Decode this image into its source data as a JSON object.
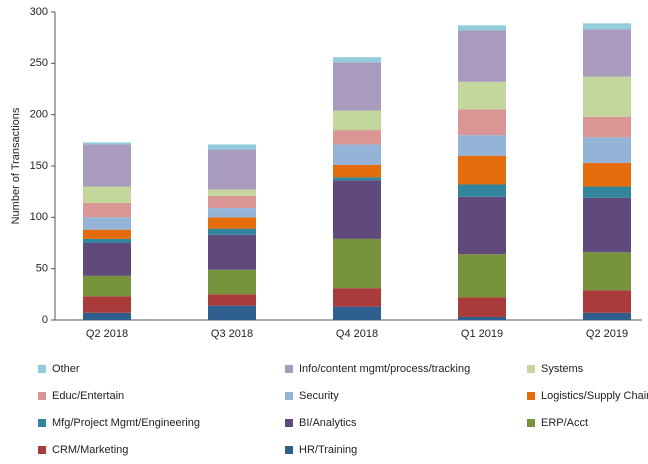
{
  "chart_data": {
    "type": "stacked_bar",
    "y_label": "Number of Transactions",
    "categories": [
      "Q2 2018",
      "Q3 2018",
      "Q4 2018",
      "Q1 2019",
      "Q2 2019"
    ],
    "ylim": [
      0,
      300
    ],
    "yticks": [
      0,
      50,
      100,
      150,
      200,
      250,
      300
    ],
    "series": [
      {
        "name": "Other",
        "color": "#93cddd",
        "values": [
          2,
          5,
          5,
          5,
          6
        ]
      },
      {
        "name": "Info/content mgmt/process/tracking",
        "color": "#a99bbd",
        "values": [
          41,
          39,
          47,
          50,
          46
        ]
      },
      {
        "name": "Systems",
        "color": "#c3d69b",
        "values": [
          16,
          6,
          19,
          27,
          39
        ]
      },
      {
        "name": "Educ/Entertain",
        "color": "#d99694",
        "values": [
          14,
          12,
          14,
          25,
          20
        ]
      },
      {
        "name": "Security",
        "color": "#95b3d7",
        "values": [
          12,
          9,
          20,
          20,
          25
        ]
      },
      {
        "name": "Logistics/Supply Chain",
        "color": "#e46c0a",
        "values": [
          9,
          11,
          12,
          28,
          23
        ]
      },
      {
        "name": "Mfg/Project Mgmt/Engineering",
        "color": "#31859c",
        "values": [
          4,
          6,
          3,
          12,
          11
        ]
      },
      {
        "name": "BI/Analytics",
        "color": "#604a7b",
        "values": [
          32,
          34,
          57,
          56,
          53
        ]
      },
      {
        "name": "ERP/Acct",
        "color": "#77933c",
        "values": [
          20,
          24,
          48,
          42,
          37
        ]
      },
      {
        "name": "CRM/Marketing",
        "color": "#a93b3b",
        "values": [
          16,
          11,
          18,
          19,
          22
        ]
      },
      {
        "name": "HR/Training",
        "color": "#2f5f8f",
        "values": [
          7,
          14,
          13,
          3,
          7
        ]
      }
    ]
  }
}
